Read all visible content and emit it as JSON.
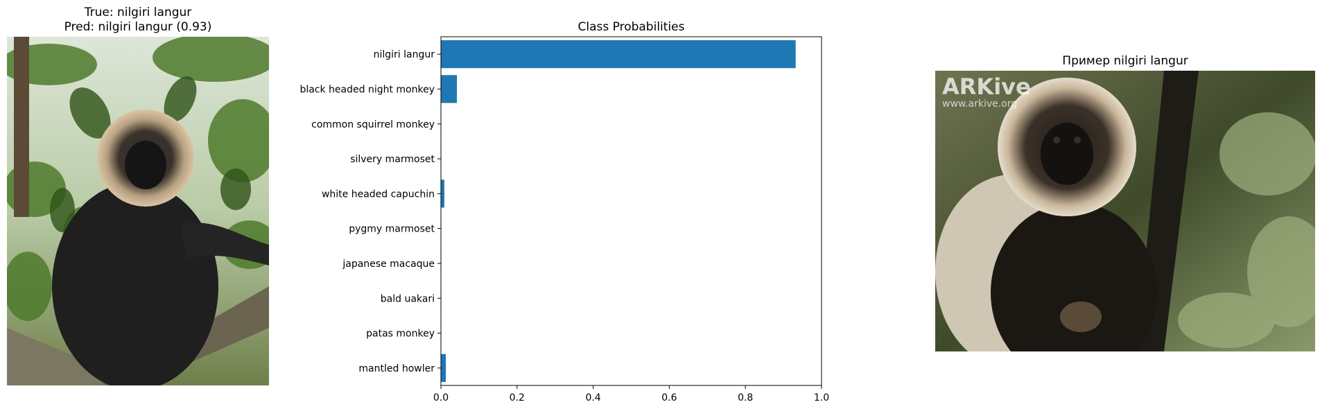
{
  "left_panel": {
    "title_line1": "True: nilgiri langur",
    "title_line2": "Pred: nilgiri langur (0.93)"
  },
  "right_panel": {
    "title": "Пример nilgiri langur",
    "watermark_logo": "ARKive",
    "watermark_url": "www.arkive.org"
  },
  "chart_data": {
    "type": "bar",
    "orientation": "horizontal",
    "title": "Class Probabilities",
    "categories": [
      "nilgiri langur",
      "black headed night monkey",
      "common squirrel monkey",
      "silvery marmoset",
      "white headed capuchin",
      "pygmy marmoset",
      "japanese macaque",
      "bald uakari",
      "patas monkey",
      "mantled howler"
    ],
    "values": [
      0.932,
      0.042,
      0.001,
      0.001,
      0.009,
      0.001,
      0.001,
      0.001,
      0.001,
      0.013
    ],
    "xlim": [
      0,
      1.0
    ],
    "xticks": [
      "0.0",
      "0.2",
      "0.4",
      "0.6",
      "0.8",
      "1.0"
    ],
    "xlabel": "",
    "ylabel": "",
    "bar_color": "#1f77b4",
    "grid": false
  }
}
